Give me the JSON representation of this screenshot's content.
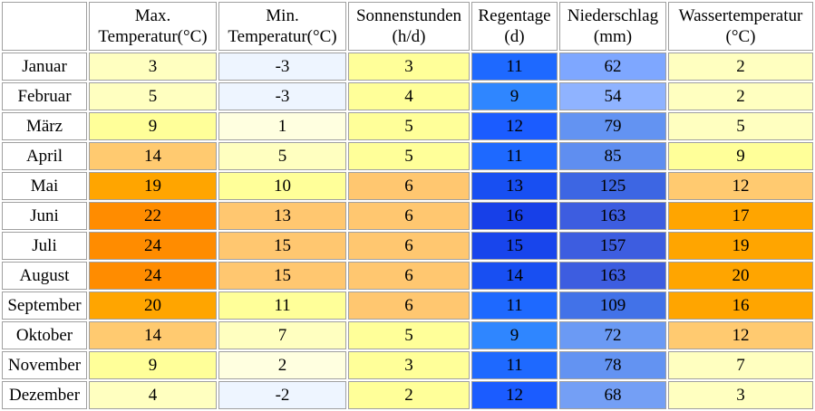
{
  "headers": [
    "",
    "Max.\nTemperatur(°C)",
    "Min.\nTemperatur(°C)",
    "Sonnenstunden\n(h/d)",
    "Regentage\n(d)",
    "Niederschlag\n(mm)",
    "Wassertemperatur\n(°C)"
  ],
  "rows": [
    {
      "month": "Januar",
      "cells": [
        {
          "v": "3",
          "c": "#ffffc0"
        },
        {
          "v": "-3",
          "c": "#eef5ff"
        },
        {
          "v": "3",
          "c": "#ffff99"
        },
        {
          "v": "11",
          "c": "#1e69ff"
        },
        {
          "v": "62",
          "c": "#7ea7ff"
        },
        {
          "v": "2",
          "c": "#ffffc0"
        }
      ]
    },
    {
      "month": "Februar",
      "cells": [
        {
          "v": "5",
          "c": "#ffffc0"
        },
        {
          "v": "-3",
          "c": "#eef5ff"
        },
        {
          "v": "4",
          "c": "#ffff99"
        },
        {
          "v": "9",
          "c": "#2f86ff"
        },
        {
          "v": "54",
          "c": "#8fb3ff"
        },
        {
          "v": "2",
          "c": "#ffffc0"
        }
      ]
    },
    {
      "month": "März",
      "cells": [
        {
          "v": "9",
          "c": "#ffff99"
        },
        {
          "v": "1",
          "c": "#ffffe0"
        },
        {
          "v": "5",
          "c": "#ffff99"
        },
        {
          "v": "12",
          "c": "#1b5cff"
        },
        {
          "v": "79",
          "c": "#6393f2"
        },
        {
          "v": "5",
          "c": "#ffffc0"
        }
      ]
    },
    {
      "month": "April",
      "cells": [
        {
          "v": "14",
          "c": "#ffca70"
        },
        {
          "v": "5",
          "c": "#ffffc0"
        },
        {
          "v": "5",
          "c": "#ffff99"
        },
        {
          "v": "11",
          "c": "#1e69ff"
        },
        {
          "v": "85",
          "c": "#5f8ef0"
        },
        {
          "v": "9",
          "c": "#ffff99"
        }
      ]
    },
    {
      "month": "Mai",
      "cells": [
        {
          "v": "19",
          "c": "#ffa500"
        },
        {
          "v": "10",
          "c": "#ffff99"
        },
        {
          "v": "6",
          "c": "#ffc770"
        },
        {
          "v": "13",
          "c": "#184ff2"
        },
        {
          "v": "125",
          "c": "#3d66e3"
        },
        {
          "v": "12",
          "c": "#ffca70"
        }
      ]
    },
    {
      "month": "Juni",
      "cells": [
        {
          "v": "22",
          "c": "#ff8c00"
        },
        {
          "v": "13",
          "c": "#ffc770"
        },
        {
          "v": "6",
          "c": "#ffc770"
        },
        {
          "v": "16",
          "c": "#1740e8"
        },
        {
          "v": "163",
          "c": "#3d5de0"
        },
        {
          "v": "17",
          "c": "#ffa500"
        }
      ]
    },
    {
      "month": "Juli",
      "cells": [
        {
          "v": "24",
          "c": "#ff8c00"
        },
        {
          "v": "15",
          "c": "#ffc770"
        },
        {
          "v": "6",
          "c": "#ffc770"
        },
        {
          "v": "15",
          "c": "#1845ec"
        },
        {
          "v": "157",
          "c": "#3d5de0"
        },
        {
          "v": "19",
          "c": "#ffa500"
        }
      ]
    },
    {
      "month": "August",
      "cells": [
        {
          "v": "24",
          "c": "#ff8c00"
        },
        {
          "v": "15",
          "c": "#ffc770"
        },
        {
          "v": "6",
          "c": "#ffc770"
        },
        {
          "v": "14",
          "c": "#184ff2"
        },
        {
          "v": "163",
          "c": "#3d5de0"
        },
        {
          "v": "20",
          "c": "#ffa500"
        }
      ]
    },
    {
      "month": "September",
      "cells": [
        {
          "v": "20",
          "c": "#ffa500"
        },
        {
          "v": "11",
          "c": "#ffff99"
        },
        {
          "v": "6",
          "c": "#ffc770"
        },
        {
          "v": "11",
          "c": "#1e69ff"
        },
        {
          "v": "109",
          "c": "#4272e8"
        },
        {
          "v": "16",
          "c": "#ffa500"
        }
      ]
    },
    {
      "month": "Oktober",
      "cells": [
        {
          "v": "14",
          "c": "#ffca70"
        },
        {
          "v": "7",
          "c": "#ffffc0"
        },
        {
          "v": "5",
          "c": "#ffff99"
        },
        {
          "v": "9",
          "c": "#2f86ff"
        },
        {
          "v": "72",
          "c": "#6b9af4"
        },
        {
          "v": "12",
          "c": "#ffca70"
        }
      ]
    },
    {
      "month": "November",
      "cells": [
        {
          "v": "9",
          "c": "#ffff99"
        },
        {
          "v": "2",
          "c": "#ffffe0"
        },
        {
          "v": "3",
          "c": "#ffff99"
        },
        {
          "v": "11",
          "c": "#1e69ff"
        },
        {
          "v": "78",
          "c": "#6393f2"
        },
        {
          "v": "7",
          "c": "#ffffc0"
        }
      ]
    },
    {
      "month": "Dezember",
      "cells": [
        {
          "v": "4",
          "c": "#ffffc0"
        },
        {
          "v": "-2",
          "c": "#eef5ff"
        },
        {
          "v": "2",
          "c": "#ffff99"
        },
        {
          "v": "12",
          "c": "#1b5cff"
        },
        {
          "v": "68",
          "c": "#749ff5"
        },
        {
          "v": "3",
          "c": "#ffffc0"
        }
      ]
    }
  ]
}
